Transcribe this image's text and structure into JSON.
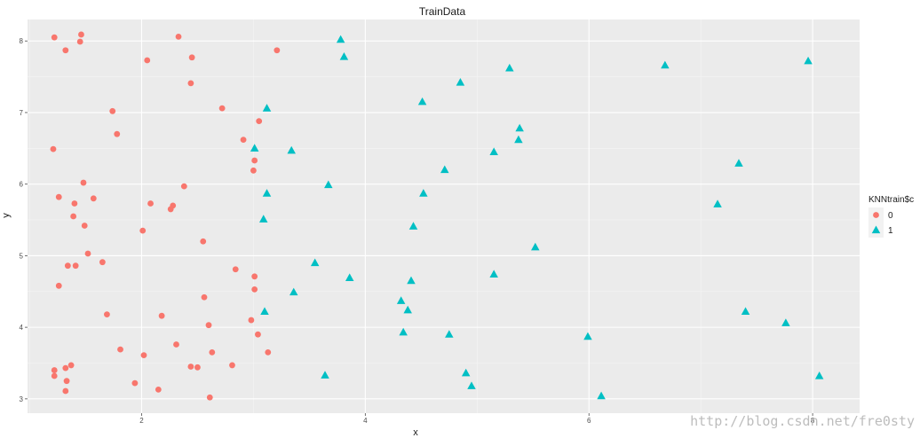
{
  "chart_data": {
    "type": "scatter",
    "title": "TrainData",
    "xlabel": "x",
    "ylabel": "y",
    "xlim": [
      0.98,
      8.42
    ],
    "ylim": [
      2.8,
      8.3
    ],
    "x_ticks": [
      2,
      4,
      6,
      8
    ],
    "y_ticks": [
      3,
      4,
      5,
      6,
      7,
      8
    ],
    "grid": true,
    "legend_position": "right",
    "legend_title": "KNNtrain$c",
    "series": [
      {
        "name": "0",
        "marker": "circle",
        "color": "#F8766D",
        "points": [
          [
            1.22,
            8.05
          ],
          [
            1.46,
            8.09
          ],
          [
            1.45,
            7.99
          ],
          [
            1.32,
            7.87
          ],
          [
            2.33,
            8.06
          ],
          [
            2.05,
            7.73
          ],
          [
            2.45,
            7.77
          ],
          [
            3.21,
            7.87
          ],
          [
            2.44,
            7.41
          ],
          [
            2.72,
            7.06
          ],
          [
            1.74,
            7.02
          ],
          [
            3.05,
            6.88
          ],
          [
            1.78,
            6.7
          ],
          [
            2.91,
            6.62
          ],
          [
            1.21,
            6.49
          ],
          [
            3.01,
            6.33
          ],
          [
            3.0,
            6.19
          ],
          [
            1.48,
            6.02
          ],
          [
            2.38,
            5.97
          ],
          [
            1.26,
            5.82
          ],
          [
            1.57,
            5.8
          ],
          [
            1.4,
            5.73
          ],
          [
            2.08,
            5.73
          ],
          [
            2.28,
            5.7
          ],
          [
            2.26,
            5.65
          ],
          [
            1.39,
            5.55
          ],
          [
            1.49,
            5.42
          ],
          [
            2.01,
            5.35
          ],
          [
            2.55,
            5.2
          ],
          [
            1.52,
            5.03
          ],
          [
            1.65,
            4.91
          ],
          [
            1.34,
            4.86
          ],
          [
            1.41,
            4.86
          ],
          [
            2.84,
            4.81
          ],
          [
            3.01,
            4.71
          ],
          [
            1.26,
            4.58
          ],
          [
            3.01,
            4.53
          ],
          [
            2.56,
            4.42
          ],
          [
            1.69,
            4.18
          ],
          [
            2.18,
            4.16
          ],
          [
            2.98,
            4.1
          ],
          [
            2.6,
            4.03
          ],
          [
            3.04,
            3.9
          ],
          [
            2.31,
            3.76
          ],
          [
            1.81,
            3.69
          ],
          [
            2.63,
            3.65
          ],
          [
            3.13,
            3.65
          ],
          [
            2.02,
            3.61
          ],
          [
            2.81,
            3.47
          ],
          [
            1.37,
            3.47
          ],
          [
            2.44,
            3.45
          ],
          [
            2.5,
            3.44
          ],
          [
            1.32,
            3.43
          ],
          [
            1.22,
            3.4
          ],
          [
            1.22,
            3.32
          ],
          [
            1.33,
            3.25
          ],
          [
            1.94,
            3.22
          ],
          [
            2.15,
            3.13
          ],
          [
            1.32,
            3.11
          ],
          [
            2.61,
            3.02
          ]
        ]
      },
      {
        "name": "1",
        "marker": "triangle",
        "color": "#00BFC4",
        "points": [
          [
            3.78,
            8.02
          ],
          [
            3.81,
            7.78
          ],
          [
            7.96,
            7.72
          ],
          [
            6.68,
            7.66
          ],
          [
            5.29,
            7.62
          ],
          [
            4.85,
            7.42
          ],
          [
            4.51,
            7.15
          ],
          [
            3.12,
            7.06
          ],
          [
            5.38,
            6.78
          ],
          [
            5.37,
            6.62
          ],
          [
            3.01,
            6.5
          ],
          [
            3.34,
            6.47
          ],
          [
            5.15,
            6.45
          ],
          [
            7.34,
            6.29
          ],
          [
            4.71,
            6.2
          ],
          [
            3.67,
            5.99
          ],
          [
            3.12,
            5.87
          ],
          [
            4.52,
            5.87
          ],
          [
            7.15,
            5.72
          ],
          [
            3.09,
            5.51
          ],
          [
            4.43,
            5.41
          ],
          [
            5.52,
            5.12
          ],
          [
            3.55,
            4.9
          ],
          [
            5.15,
            4.74
          ],
          [
            3.86,
            4.69
          ],
          [
            4.41,
            4.65
          ],
          [
            3.36,
            4.49
          ],
          [
            4.32,
            4.37
          ],
          [
            3.1,
            4.22
          ],
          [
            4.38,
            4.24
          ],
          [
            7.4,
            4.22
          ],
          [
            7.76,
            4.06
          ],
          [
            4.34,
            3.93
          ],
          [
            4.75,
            3.9
          ],
          [
            5.99,
            3.87
          ],
          [
            3.64,
            3.33
          ],
          [
            4.9,
            3.36
          ],
          [
            8.06,
            3.32
          ],
          [
            4.95,
            3.18
          ],
          [
            6.11,
            3.04
          ]
        ]
      }
    ]
  },
  "watermark": "http://blog.csdn.net/fre0sty"
}
